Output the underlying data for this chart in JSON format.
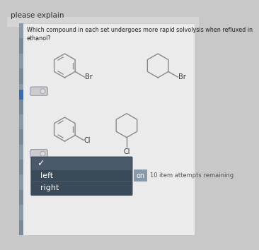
{
  "title_text": "please explain",
  "question_text": "Which compound in each set undergoes more rapid solvolysis when refluxed in\nethanol?",
  "bg_color": "#c8c8c8",
  "card_color": "#ebebeb",
  "sidebar_dark": "#6a7a8a",
  "sidebar_segments": 14,
  "blue_bar_color": "#3a6ab0",
  "dropdown_bg": "#3a4a58",
  "dropdown_highlight": "#4a5a6a",
  "attempts_text": "10 item attempts remaining",
  "menu_items": [
    "left",
    "right"
  ],
  "toggle_label": "on",
  "struct_color": "#888888",
  "text_color": "#444444"
}
